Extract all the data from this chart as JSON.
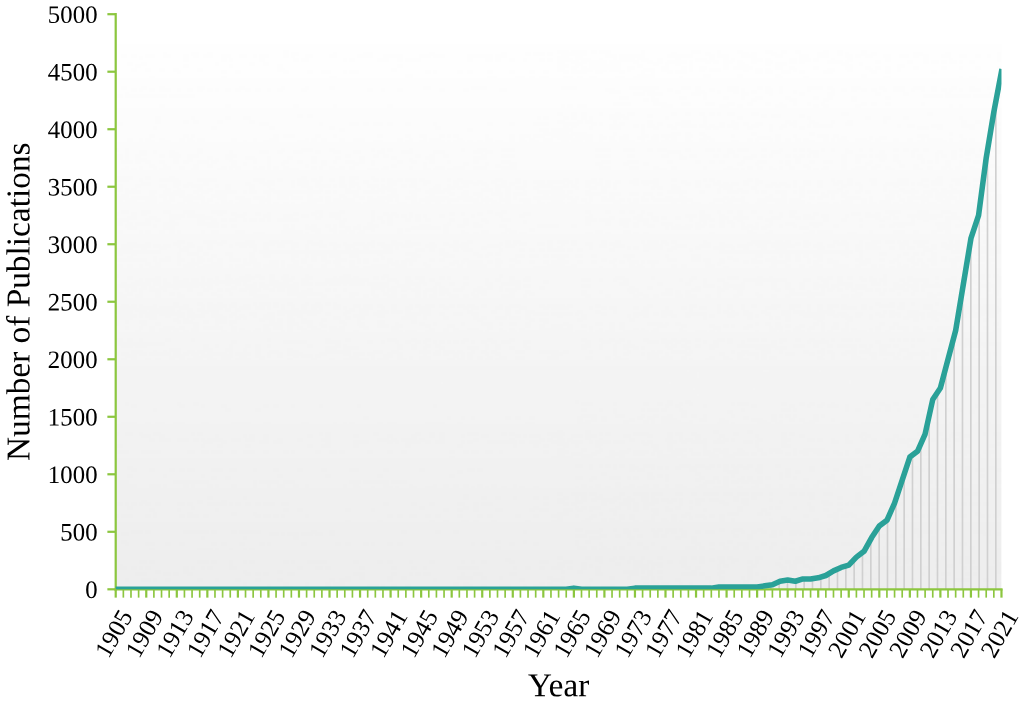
{
  "chart_data": {
    "type": "area",
    "xlabel": "Year",
    "ylabel": "Number of Publications",
    "x": [
      1905,
      1906,
      1907,
      1908,
      1909,
      1910,
      1911,
      1912,
      1913,
      1914,
      1915,
      1916,
      1917,
      1918,
      1919,
      1920,
      1921,
      1922,
      1923,
      1924,
      1925,
      1926,
      1927,
      1928,
      1929,
      1930,
      1931,
      1932,
      1933,
      1934,
      1935,
      1936,
      1937,
      1938,
      1939,
      1940,
      1941,
      1942,
      1943,
      1944,
      1945,
      1946,
      1947,
      1948,
      1949,
      1950,
      1951,
      1952,
      1953,
      1954,
      1955,
      1956,
      1957,
      1958,
      1959,
      1960,
      1961,
      1962,
      1963,
      1964,
      1965,
      1966,
      1967,
      1968,
      1969,
      1970,
      1971,
      1972,
      1973,
      1974,
      1975,
      1976,
      1977,
      1978,
      1979,
      1980,
      1981,
      1982,
      1983,
      1984,
      1985,
      1986,
      1987,
      1988,
      1989,
      1990,
      1991,
      1992,
      1993,
      1994,
      1995,
      1996,
      1997,
      1998,
      1999,
      2000,
      2001,
      2002,
      2003,
      2004,
      2005,
      2006,
      2007,
      2008,
      2009,
      2010,
      2011,
      2012,
      2013,
      2014,
      2015,
      2016,
      2017,
      2018,
      2019,
      2020,
      2021
    ],
    "series": [
      {
        "color": "#2aa198",
        "values": [
          0,
          0,
          0,
          0,
          0,
          0,
          0,
          0,
          0,
          0,
          0,
          0,
          0,
          0,
          0,
          0,
          0,
          0,
          0,
          0,
          0,
          0,
          0,
          0,
          0,
          0,
          0,
          0,
          0,
          0,
          0,
          0,
          0,
          0,
          0,
          0,
          0,
          0,
          0,
          0,
          0,
          0,
          0,
          0,
          0,
          0,
          0,
          0,
          0,
          0,
          0,
          0,
          0,
          0,
          0,
          0,
          0,
          0,
          0,
          0,
          10,
          0,
          0,
          0,
          0,
          0,
          0,
          0,
          10,
          10,
          10,
          10,
          10,
          10,
          10,
          10,
          10,
          10,
          10,
          20,
          20,
          20,
          20,
          20,
          20,
          30,
          40,
          70,
          80,
          70,
          90,
          90,
          100,
          120,
          160,
          190,
          210,
          280,
          330,
          450,
          550,
          600,
          750,
          950,
          1150,
          1200,
          1350,
          1650,
          1750,
          2000,
          2250,
          2650,
          3050,
          3250,
          3750,
          4150,
          4500
        ]
      }
    ],
    "xticks": [
      1905,
      1909,
      1913,
      1917,
      1921,
      1925,
      1929,
      1933,
      1937,
      1941,
      1945,
      1949,
      1953,
      1957,
      1961,
      1965,
      1969,
      1973,
      1977,
      1981,
      1985,
      1989,
      1993,
      1997,
      2001,
      2005,
      2009,
      2013,
      2017,
      2021
    ],
    "xlim": [
      1905,
      2021
    ],
    "ylim": [
      0,
      5000
    ],
    "yticks": [
      0,
      500,
      1000,
      1500,
      2000,
      2500,
      3000,
      3500,
      4000,
      4500,
      5000
    ],
    "grid": false,
    "legend": false,
    "marker": "none",
    "line_style": "solid"
  }
}
